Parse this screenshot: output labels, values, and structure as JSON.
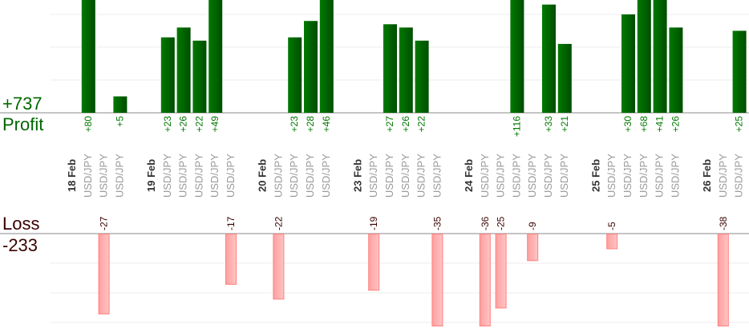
{
  "chart_data": {
    "type": "bar",
    "title": "",
    "profit": {
      "label": "Profit",
      "total": "+737",
      "color": "#006600"
    },
    "loss": {
      "label": "Loss",
      "total": "-233",
      "color": "#ff9999"
    },
    "groups": [
      {
        "date": "18 Feb",
        "trades": [
          {
            "pair": "USD/JPY",
            "value": 80
          },
          {
            "pair": "USD/JPY",
            "value": -27
          },
          {
            "pair": "USD/JPY",
            "value": 5
          }
        ]
      },
      {
        "date": "19 Feb",
        "trades": [
          {
            "pair": "USD/JPY",
            "value": 23
          },
          {
            "pair": "USD/JPY",
            "value": 26
          },
          {
            "pair": "USD/JPY",
            "value": 22
          },
          {
            "pair": "USD/JPY",
            "value": 49
          },
          {
            "pair": "USD/JPY",
            "value": -17
          }
        ]
      },
      {
        "date": "20 Feb",
        "trades": [
          {
            "pair": "USD/JPY",
            "value": -22
          },
          {
            "pair": "USD/JPY",
            "value": 23
          },
          {
            "pair": "USD/JPY",
            "value": 28
          },
          {
            "pair": "USD/JPY",
            "value": 46
          }
        ]
      },
      {
        "date": "23 Feb",
        "trades": [
          {
            "pair": "USD/JPY",
            "value": -19
          },
          {
            "pair": "USD/JPY",
            "value": 27
          },
          {
            "pair": "USD/JPY",
            "value": 26
          },
          {
            "pair": "USD/JPY",
            "value": 22
          },
          {
            "pair": "USD/JPY",
            "value": -35
          }
        ]
      },
      {
        "date": "24 Feb",
        "trades": [
          {
            "pair": "USD/JPY",
            "value": -36
          },
          {
            "pair": "USD/JPY",
            "value": -25
          },
          {
            "pair": "USD/JPY",
            "value": 116
          },
          {
            "pair": "USD/JPY",
            "value": -9
          },
          {
            "pair": "USD/JPY",
            "value": 33
          },
          {
            "pair": "USD/JPY",
            "value": 21
          }
        ]
      },
      {
        "date": "25 Feb",
        "trades": [
          {
            "pair": "USD/JPY",
            "value": -5
          },
          {
            "pair": "USD/JPY",
            "value": 30
          },
          {
            "pair": "USD/JPY",
            "value": 68
          },
          {
            "pair": "USD/JPY",
            "value": 41
          },
          {
            "pair": "USD/JPY",
            "value": 26
          }
        ]
      },
      {
        "date": "26 Feb",
        "trades": [
          {
            "pair": "USD/JPY",
            "value": -38
          },
          {
            "pair": "USD/JPY",
            "value": 25
          }
        ]
      }
    ],
    "profit_grid_step": 10,
    "loss_grid_step": 10
  }
}
